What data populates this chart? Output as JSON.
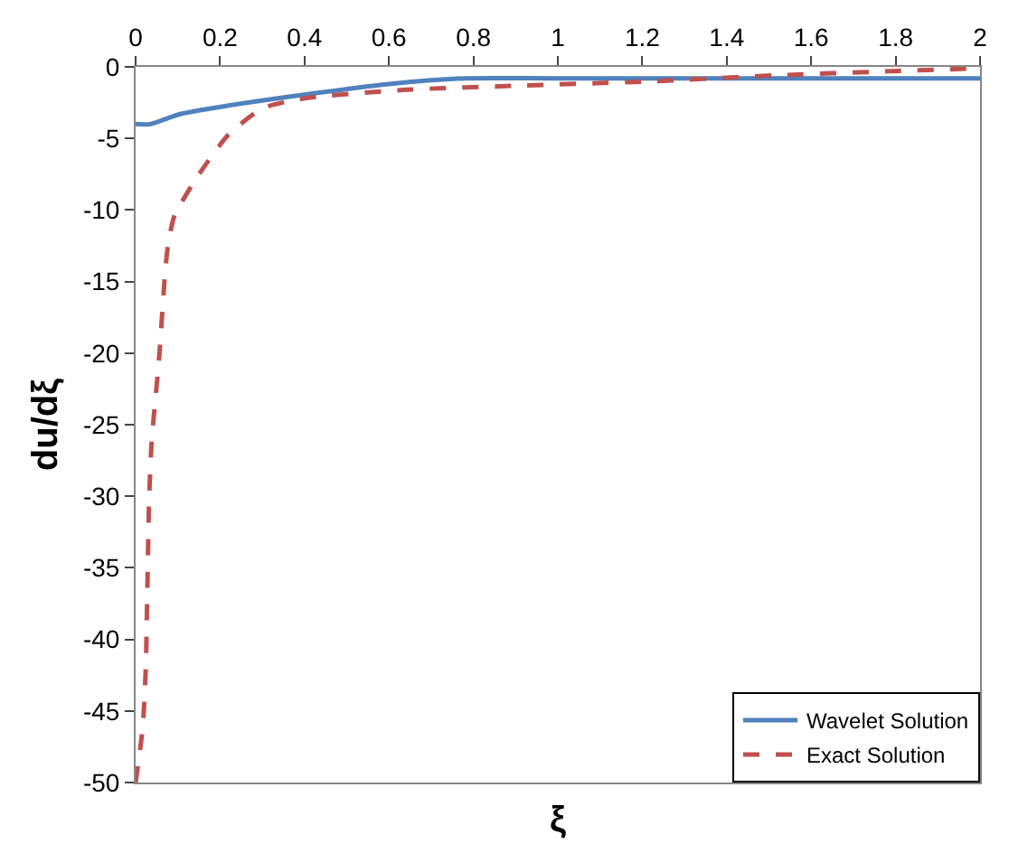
{
  "chart_data": {
    "type": "line",
    "xlabel": "ξ",
    "ylabel": "du/dξ",
    "xlim": [
      0,
      2
    ],
    "xticks": [
      0,
      0.2,
      0.4,
      0.6,
      0.8,
      1,
      1.2,
      1.4,
      1.6,
      1.8,
      2
    ],
    "ylim": [
      -50,
      0
    ],
    "yticks": [
      -50,
      -45,
      -40,
      -35,
      -30,
      -25,
      -20,
      -15,
      -10,
      -5,
      0
    ],
    "legend": "bottom right",
    "marker": "none",
    "series": [
      {
        "name": "Wavelet Solution",
        "color": "#4f81bd",
        "line_style": "solid",
        "x": [
          0,
          0.035,
          0.105,
          0.22,
          0.36,
          0.6,
          0.78,
          0.99,
          1.5,
          2
        ],
        "values": [
          -4.0,
          -4.0,
          -3.3,
          -2.7,
          -2.1,
          -1.2,
          -0.8,
          -0.8,
          -0.8,
          -0.8
        ]
      },
      {
        "name": "Exact Solution",
        "color": "#c0504d",
        "line_style": "dashed",
        "x": [
          0,
          0.017,
          0.024,
          0.028,
          0.032,
          0.038,
          0.056,
          0.07,
          0.077,
          0.092,
          0.148,
          0.218,
          0.3,
          0.4,
          0.64,
          0.92,
          1.23,
          1.51,
          1.79,
          2
        ],
        "values": [
          -50,
          -46.1,
          -42.1,
          -36.2,
          -30.2,
          -26.2,
          -20.2,
          -14.3,
          -12.4,
          -10.4,
          -7.6,
          -4.8,
          -2.9,
          -2.2,
          -1.6,
          -1.3,
          -1.0,
          -0.6,
          -0.3,
          -0.1
        ]
      }
    ]
  }
}
